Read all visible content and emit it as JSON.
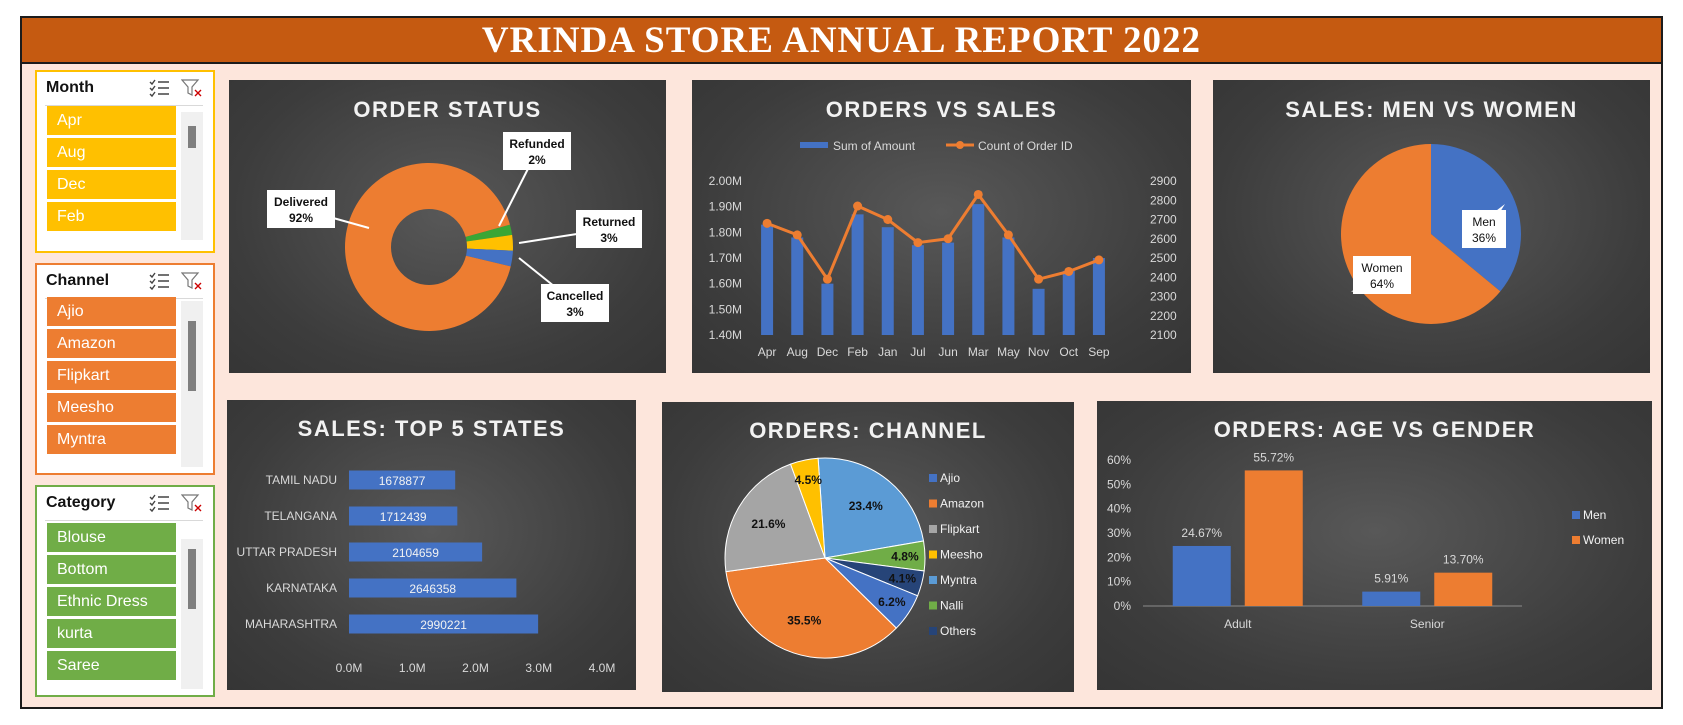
{
  "title": "VRINDA STORE ANNUAL REPORT 2022",
  "colors": {
    "banner": "#c55a11",
    "men": "#4472c4",
    "women": "#ed7d31",
    "month": "#ffc000",
    "channel": "#ed7d31",
    "category": "#70ad47"
  },
  "slicers": {
    "month": {
      "label": "Month",
      "items": [
        "Apr",
        "Aug",
        "Dec",
        "Feb"
      ],
      "icons": [
        "multi-select-icon",
        "clear-filter-icon"
      ]
    },
    "channel": {
      "label": "Channel",
      "items": [
        "Ajio",
        "Amazon",
        "Flipkart",
        "Meesho",
        "Myntra"
      ],
      "icons": [
        "multi-select-icon",
        "clear-filter-icon"
      ]
    },
    "category": {
      "label": "Category",
      "items": [
        "Blouse",
        "Bottom",
        "Ethnic Dress",
        "kurta",
        "Saree"
      ],
      "icons": [
        "multi-select-icon",
        "clear-filter-icon"
      ]
    }
  },
  "charts": {
    "order_status": {
      "title": "ORDER STATUS"
    },
    "orders_vs_sales": {
      "title": "ORDERS VS SALES"
    },
    "men_vs_women": {
      "title": "SALES: MEN VS WOMEN"
    },
    "top_states": {
      "title": "SALES: TOP 5 STATES"
    },
    "channel": {
      "title": "ORDERS: CHANNEL"
    },
    "age_gender": {
      "title": "ORDERS: AGE VS GENDER"
    }
  },
  "chart_data": [
    {
      "id": "order_status",
      "type": "pie",
      "subtype": "doughnut",
      "title": "ORDER STATUS",
      "slices": [
        {
          "name": "Delivered",
          "value": 92,
          "label": "92%",
          "color": "#ed7d31"
        },
        {
          "name": "Refunded",
          "value": 2,
          "label": "2%",
          "color": "#3aa635"
        },
        {
          "name": "Returned",
          "value": 3,
          "label": "3%",
          "color": "#ffc000"
        },
        {
          "name": "Cancelled",
          "value": 3,
          "label": "3%",
          "color": "#4472c4"
        }
      ]
    },
    {
      "id": "orders_vs_sales",
      "type": "bar",
      "combo": "bar+line",
      "title": "ORDERS VS SALES",
      "categories": [
        "Apr",
        "Aug",
        "Dec",
        "Feb",
        "Jan",
        "Jul",
        "Jun",
        "Mar",
        "May",
        "Nov",
        "Oct",
        "Sep"
      ],
      "series": [
        {
          "name": "Sum of Amount",
          "type": "bar",
          "axis": "left",
          "color": "#4472c4",
          "values": [
            1.83,
            1.78,
            1.6,
            1.87,
            1.82,
            1.75,
            1.76,
            1.91,
            1.78,
            1.58,
            1.65,
            1.7
          ]
        },
        {
          "name": "Count of Order ID",
          "type": "line",
          "axis": "right",
          "color": "#ed7d31",
          "values": [
            2680,
            2620,
            2390,
            2770,
            2700,
            2580,
            2600,
            2830,
            2620,
            2390,
            2430,
            2490
          ]
        }
      ],
      "y_left": {
        "ticks": [
          "1.40M",
          "1.50M",
          "1.60M",
          "1.70M",
          "1.80M",
          "1.90M",
          "2.00M"
        ],
        "range": [
          1.4,
          2.0
        ]
      },
      "y_right": {
        "ticks": [
          "2100",
          "2200",
          "2300",
          "2400",
          "2500",
          "2600",
          "2700",
          "2800",
          "2900"
        ],
        "range": [
          2100,
          2900
        ]
      },
      "legend": "top"
    },
    {
      "id": "men_vs_women",
      "type": "pie",
      "title": "SALES: MEN VS WOMEN",
      "slices": [
        {
          "name": "Men",
          "value": 36,
          "label": "36%",
          "color": "#4472c4"
        },
        {
          "name": "Women",
          "value": 64,
          "label": "64%",
          "color": "#ed7d31"
        }
      ]
    },
    {
      "id": "top_states",
      "type": "bar",
      "orientation": "horizontal",
      "title": "SALES: TOP 5 STATES",
      "categories": [
        "TAMIL NADU",
        "TELANGANA",
        "UTTAR PRADESH",
        "KARNATAKA",
        "MAHARASHTRA"
      ],
      "values": [
        1678877,
        1712439,
        2104659,
        2646358,
        2990221
      ],
      "x_ticks": [
        "0.0M",
        "1.0M",
        "2.0M",
        "3.0M",
        "4.0M"
      ],
      "xlim": [
        0,
        4000000
      ],
      "color": "#4472c4"
    },
    {
      "id": "channel",
      "type": "pie",
      "title": "ORDERS: CHANNEL",
      "slices": [
        {
          "name": "Myntra",
          "value": 23.4,
          "label": "23.4%",
          "color": "#5b9bd5"
        },
        {
          "name": "Nalli",
          "value": 4.8,
          "label": "4.8%",
          "color": "#70ad47"
        },
        {
          "name": "Others",
          "value": 4.1,
          "label": "4.1%",
          "color": "#264478"
        },
        {
          "name": "Ajio",
          "value": 6.2,
          "label": "6.2%",
          "color": "#4472c4"
        },
        {
          "name": "Amazon",
          "value": 35.5,
          "label": "35.5%",
          "color": "#ed7d31"
        },
        {
          "name": "Flipkart",
          "value": 21.6,
          "label": "21.6%",
          "color": "#a5a5a5"
        },
        {
          "name": "Meesho",
          "value": 4.5,
          "label": "4.5%",
          "color": "#ffc000"
        }
      ],
      "legend": [
        "Ajio",
        "Amazon",
        "Flipkart",
        "Meesho",
        "Myntra",
        "Nalli",
        "Others"
      ],
      "legend_position": "right"
    },
    {
      "id": "age_gender",
      "type": "bar",
      "title": "ORDERS: AGE VS GENDER",
      "categories": [
        "Adult",
        "Senior"
      ],
      "series": [
        {
          "name": "Men",
          "values": [
            24.67,
            5.91
          ],
          "labels": [
            "24.67%",
            "5.91%"
          ],
          "color": "#4472c4"
        },
        {
          "name": "Women",
          "values": [
            55.72,
            13.7
          ],
          "labels": [
            "55.72%",
            "13.70%"
          ],
          "color": "#ed7d31"
        }
      ],
      "y_ticks": [
        "0%",
        "10%",
        "20%",
        "30%",
        "40%",
        "50%",
        "60%"
      ],
      "ylim": [
        0,
        60
      ],
      "legend": "right"
    }
  ]
}
